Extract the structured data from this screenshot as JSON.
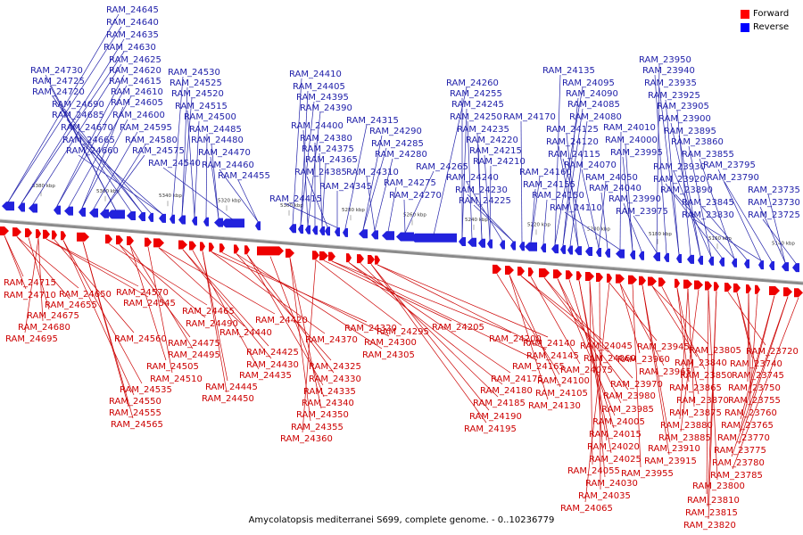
{
  "legend": [
    {
      "label": "Forward",
      "color": "#ff0000"
    },
    {
      "label": "Reverse",
      "color": "#0000ff"
    }
  ],
  "caption": "Amycolatopsis mediterranei S699, complete genome. - 0..10236779",
  "colors": {
    "forward": "#ee0000",
    "reverse": "#2222dd",
    "backbone": "#8a8a8a",
    "label_forward": "#cc0000",
    "label_reverse": "#2222aa"
  },
  "scale_labels": [
    "5380 kbp",
    "5360 kbp",
    "5340 kbp",
    "5320 kbp",
    "5300 kbp",
    "5280 kbp",
    "5260 kbp",
    "5240 kbp",
    "5220 kbp",
    "5200 kbp",
    "5180 kbp",
    "5160 kbp",
    "5140 kbp"
  ],
  "reverse_labels": [
    "RAM_24645",
    "RAM_24640",
    "RAM_24635",
    "RAM_24630",
    "RAM_24625",
    "RAM_24620",
    "RAM_24615",
    "RAM_24610",
    "RAM_24605",
    "RAM_24600",
    "RAM_24595",
    "RAM_24580",
    "RAM_24575",
    "RAM_24730",
    "RAM_24725",
    "RAM_24720",
    "RAM_24690",
    "RAM_24685",
    "RAM_24670",
    "RAM_24665",
    "RAM_24660",
    "RAM_24530",
    "RAM_24525",
    "RAM_24520",
    "RAM_24515",
    "RAM_24500",
    "RAM_24485",
    "RAM_24480",
    "RAM_24470",
    "RAM_24540",
    "RAM_24460",
    "RAM_24455",
    "RAM_24410",
    "RAM_24405",
    "RAM_24395",
    "RAM_24390",
    "RAM_24400",
    "RAM_24380",
    "RAM_24375",
    "RAM_24365",
    "RAM_24385",
    "RAM_24415",
    "RAM_24345",
    "RAM_24315",
    "RAM_24290",
    "RAM_24285",
    "RAM_24280",
    "RAM_24310",
    "RAM_24275",
    "RAM_24270",
    "RAM_24265",
    "RAM_24260",
    "RAM_24255",
    "RAM_24245",
    "RAM_24250",
    "RAM_24235",
    "RAM_24220",
    "RAM_24215",
    "RAM_24210",
    "RAM_24240",
    "RAM_24230",
    "RAM_24225",
    "RAM_24170",
    "RAM_24160",
    "RAM_24155",
    "RAM_24150",
    "RAM_24135",
    "RAM_24095",
    "RAM_24090",
    "RAM_24085",
    "RAM_24080",
    "RAM_24125",
    "RAM_24120",
    "RAM_24115",
    "RAM_24070",
    "RAM_24050",
    "RAM_24040",
    "RAM_24110",
    "RAM_24010",
    "RAM_24000",
    "RAM_23995",
    "RAM_23990",
    "RAM_23975",
    "RAM_23950",
    "RAM_23940",
    "RAM_23935",
    "RAM_23925",
    "RAM_23905",
    "RAM_23900",
    "RAM_23895",
    "RAM_23860",
    "RAM_23930",
    "RAM_23920",
    "RAM_23890",
    "RAM_23855",
    "RAM_23845",
    "RAM_23830",
    "RAM_23795",
    "RAM_23790",
    "RAM_23735",
    "RAM_23730",
    "RAM_23725"
  ],
  "forward_labels": [
    "RAM_24715",
    "RAM_24710",
    "RAM_24655",
    "RAM_24650",
    "RAM_24675",
    "RAM_24680",
    "RAM_24695",
    "RAM_24570",
    "RAM_24545",
    "RAM_24560",
    "RAM_24535",
    "RAM_24550",
    "RAM_24555",
    "RAM_24565",
    "RAM_24465",
    "RAM_24490",
    "RAM_24475",
    "RAM_24495",
    "RAM_24505",
    "RAM_24510",
    "RAM_24440",
    "RAM_24420",
    "RAM_24425",
    "RAM_24430",
    "RAM_24435",
    "RAM_24445",
    "RAM_24450",
    "RAM_24370",
    "RAM_24320",
    "RAM_24300",
    "RAM_24305",
    "RAM_24325",
    "RAM_24330",
    "RAM_24335",
    "RAM_24340",
    "RAM_24350",
    "RAM_24355",
    "RAM_24360",
    "RAM_24295",
    "RAM_24205",
    "RAM_24200",
    "RAM_24165",
    "RAM_24175",
    "RAM_24180",
    "RAM_24185",
    "RAM_24190",
    "RAM_24195",
    "RAM_24140",
    "RAM_24145",
    "RAM_24100",
    "RAM_24105",
    "RAM_24130",
    "RAM_24045",
    "RAM_24060",
    "RAM_24075",
    "RAM_23970",
    "RAM_23980",
    "RAM_23985",
    "RAM_24005",
    "RAM_24015",
    "RAM_24020",
    "RAM_24025",
    "RAM_24055",
    "RAM_24030",
    "RAM_24035",
    "RAM_24065",
    "RAM_23945",
    "RAM_23960",
    "RAM_23965",
    "RAM_23955",
    "RAM_23910",
    "RAM_23915",
    "RAM_23805",
    "RAM_23840",
    "RAM_23850",
    "RAM_23865",
    "RAM_23870",
    "RAM_23875",
    "RAM_23880",
    "RAM_23885",
    "RAM_23800",
    "RAM_23810",
    "RAM_23815",
    "RAM_23820",
    "RAM_23720",
    "RAM_23740",
    "RAM_23745",
    "RAM_23750",
    "RAM_23755",
    "RAM_23760",
    "RAM_23765",
    "RAM_23770",
    "RAM_23775",
    "RAM_23780",
    "RAM_23785"
  ]
}
